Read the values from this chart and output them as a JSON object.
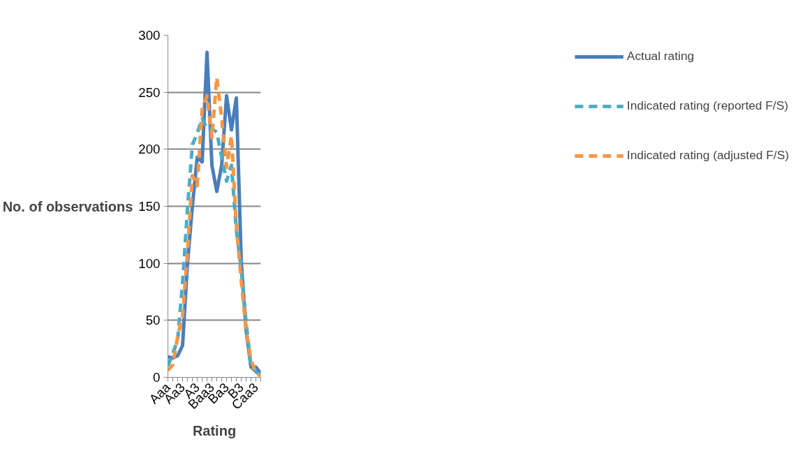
{
  "chart_data": {
    "type": "line",
    "xlabel": "Rating",
    "ylabel": "No. of observations",
    "categories": [
      "Aaa",
      null,
      null,
      "Aa3",
      null,
      null,
      "A3",
      null,
      null,
      "Baa3",
      null,
      null,
      "Ba3",
      null,
      null,
      "B3",
      null,
      null,
      "Caa3",
      null
    ],
    "series": [
      {
        "name": "Actual rating",
        "color": "#4a7ebb",
        "line_style": "solid",
        "values": [
          18,
          17,
          19,
          28,
          100,
          150,
          193,
          189,
          285,
          186,
          163,
          186,
          247,
          217,
          245,
          102,
          41,
          9,
          9,
          3
        ]
      },
      {
        "name": "Indicated rating (reported F/S)",
        "color": "#4bacc6",
        "line_style": "dashed",
        "values": [
          10,
          21,
          33,
          83,
          147,
          204,
          214,
          227,
          218,
          218,
          215,
          193,
          172,
          186,
          129,
          95,
          48,
          9,
          5,
          1
        ]
      },
      {
        "name": "Indicated rating (adjusted F/S)",
        "color": "#f79646",
        "line_style": "dashed",
        "values": [
          6,
          11,
          36,
          54,
          109,
          177,
          168,
          235,
          247,
          210,
          263,
          227,
          184,
          212,
          133,
          85,
          41,
          15,
          4,
          1
        ]
      }
    ],
    "ylim": [
      0,
      300
    ],
    "yticks": [
      0,
      50,
      100,
      150,
      200,
      250,
      300
    ],
    "grid": "y",
    "legend": "right",
    "marker": "none"
  }
}
